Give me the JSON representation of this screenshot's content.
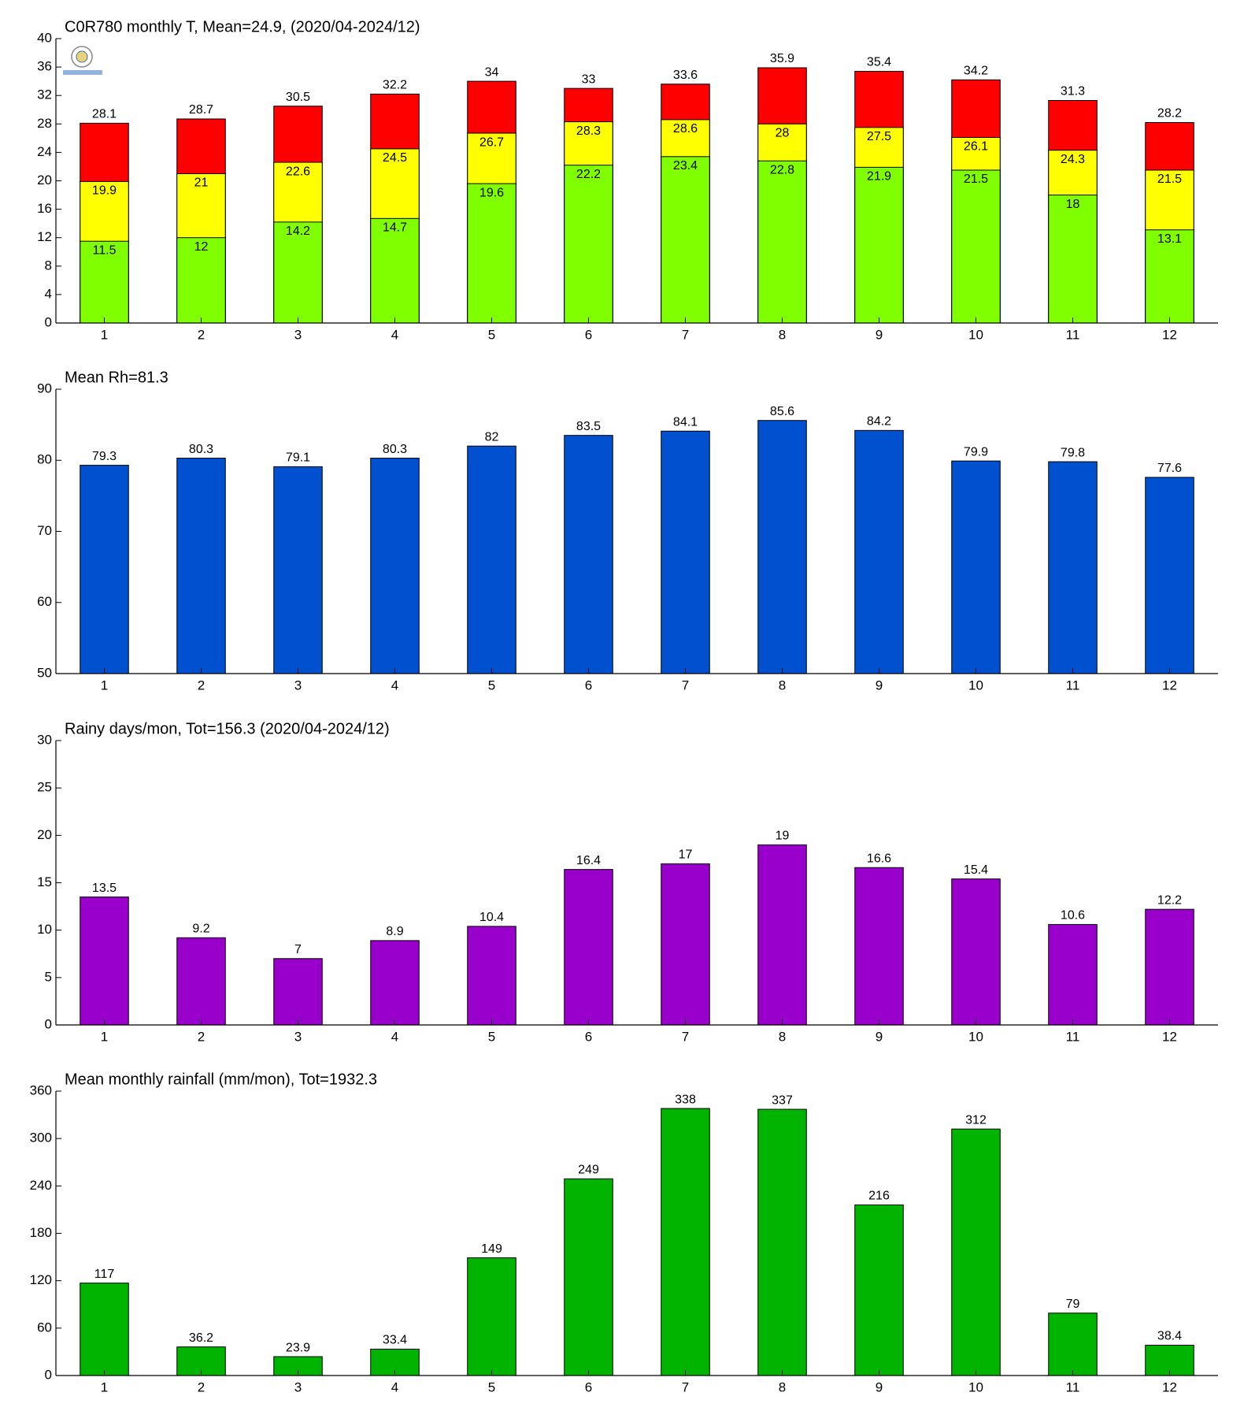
{
  "chart_data": [
    {
      "type": "bar",
      "title": "C0R780 monthly T, Mean=24.9, (2020/04-2024/12)",
      "categories": [
        "1",
        "2",
        "3",
        "4",
        "5",
        "6",
        "7",
        "8",
        "9",
        "10",
        "11",
        "12"
      ],
      "series": [
        {
          "color": "#ff0000",
          "values": [
            28.1,
            28.7,
            30.5,
            32.2,
            34,
            33,
            33.6,
            35.9,
            35.4,
            34.2,
            31.3,
            28.2
          ]
        },
        {
          "color": "#ffff00",
          "values": [
            19.9,
            21,
            22.6,
            24.5,
            26.7,
            28.3,
            28.6,
            28,
            27.5,
            26.1,
            24.3,
            21.5
          ]
        },
        {
          "color": "#80ff00",
          "values": [
            11.5,
            12,
            14.2,
            14.7,
            19.6,
            22.2,
            23.4,
            22.8,
            21.9,
            21.5,
            18,
            13.1
          ]
        }
      ],
      "ylim": [
        0,
        40
      ],
      "yticks": [
        0,
        4,
        8,
        12,
        16,
        20,
        24,
        28,
        32,
        36,
        40
      ]
    },
    {
      "type": "bar",
      "title": "Mean Rh=81.3",
      "categories": [
        "1",
        "2",
        "3",
        "4",
        "5",
        "6",
        "7",
        "8",
        "9",
        "10",
        "11",
        "12"
      ],
      "values": [
        79.3,
        80.3,
        79.1,
        80.3,
        82,
        83.5,
        84.1,
        85.6,
        84.2,
        79.9,
        79.8,
        77.6
      ],
      "color": "#0050d0",
      "ylim": [
        50,
        90
      ],
      "yticks": [
        50,
        60,
        70,
        80,
        90
      ]
    },
    {
      "type": "bar",
      "title": "Rainy days/mon, Tot=156.3 (2020/04-2024/12)",
      "categories": [
        "1",
        "2",
        "3",
        "4",
        "5",
        "6",
        "7",
        "8",
        "9",
        "10",
        "11",
        "12"
      ],
      "values": [
        13.5,
        9.2,
        7,
        8.9,
        10.4,
        16.4,
        17,
        19,
        16.6,
        15.4,
        10.6,
        12.2
      ],
      "color": "#9900cc",
      "ylim": [
        0,
        30
      ],
      "yticks": [
        0,
        5,
        10,
        15,
        20,
        25,
        30
      ]
    },
    {
      "type": "bar",
      "title": "Mean monthly rainfall (mm/mon), Tot=1932.3",
      "categories": [
        "1",
        "2",
        "3",
        "4",
        "5",
        "6",
        "7",
        "8",
        "9",
        "10",
        "11",
        "12"
      ],
      "values": [
        117,
        36.2,
        23.9,
        33.4,
        149,
        249,
        338,
        337,
        216,
        312,
        79,
        38.4
      ],
      "color": "#00b400",
      "ylim": [
        0,
        360
      ],
      "yticks": [
        0,
        60,
        120,
        180,
        240,
        300,
        360
      ]
    }
  ]
}
